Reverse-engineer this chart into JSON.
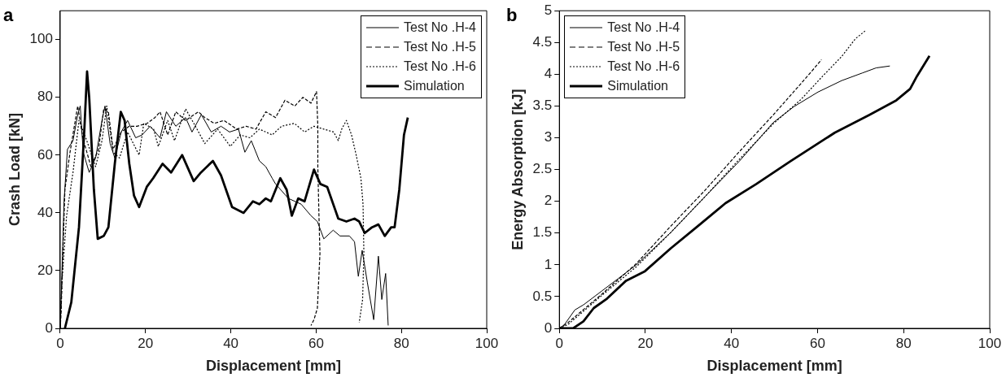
{
  "chart_data": [
    {
      "type": "line",
      "title": "a",
      "xlabel": "Displacement [mm]",
      "ylabel": "Crash Load [kN]",
      "xlim": [
        0,
        100
      ],
      "xticks": [
        0,
        20,
        40,
        60,
        80,
        100
      ],
      "ylim": [
        0,
        110
      ],
      "yticks": [
        0,
        20,
        40,
        60,
        80,
        100
      ],
      "legend": "top right",
      "grid": false,
      "marker": "none",
      "series": [
        {
          "name": "Test No .H-4",
          "color": "#000000",
          "line_style": "solid",
          "x": [
            0,
            0.2,
            0.9,
            1.7,
            3,
            4.1,
            4.7,
            5.4,
            6.8,
            8.3,
            9.8,
            10.5,
            11.7,
            12.8,
            14.3,
            15.8,
            17.7,
            19.2,
            21.1,
            23.4,
            24.9,
            27.1,
            29.4,
            30.9,
            33.1,
            35.4,
            37.7,
            39.7,
            41.8,
            43.3,
            44.8,
            46.7,
            48.2,
            49.7,
            50.5,
            53.5,
            56.5,
            58.8,
            60.3,
            61.8,
            64,
            65.6,
            67.8,
            69,
            69.9,
            70.8,
            72,
            73.5,
            74.6,
            75.4,
            76.3,
            76.9
          ],
          "values": [
            0,
            9,
            44,
            62,
            65,
            74,
            77,
            61,
            54,
            59,
            72,
            77,
            64,
            59,
            68,
            72,
            66,
            67,
            70,
            66,
            75,
            70,
            73,
            68,
            74,
            68,
            70,
            68,
            69,
            61,
            65,
            58,
            56,
            52,
            50,
            45,
            43,
            39,
            37,
            31,
            34,
            32,
            32,
            30,
            18,
            27,
            16,
            3,
            25,
            10,
            19,
            1
          ]
        },
        {
          "name": "Test No .H-5",
          "color": "#000000",
          "line_style": "dashed",
          "x": [
            0,
            0.2,
            1.1,
            2.3,
            4.1,
            5.3,
            7.2,
            9,
            10.2,
            11.3,
            12.4,
            14.3,
            16.2,
            18,
            20.4,
            22.2,
            23.4,
            25.2,
            27.1,
            29.4,
            32.4,
            33.9,
            36.1,
            38.4,
            41.4,
            43.6,
            45.9,
            48.2,
            50.5,
            52.7,
            55,
            56.9,
            58.8,
            60.1,
            60.4,
            60.4,
            60.7,
            60.9,
            60.3,
            59.5,
            58.8
          ],
          "values": [
            0,
            5,
            48,
            61,
            77,
            66,
            56,
            62,
            76,
            75,
            62,
            68,
            70,
            70,
            71,
            73,
            75,
            67,
            75,
            72,
            75,
            73,
            71,
            72,
            69,
            70,
            69,
            75,
            73,
            79,
            77,
            80,
            78,
            82,
            70,
            56,
            37,
            26,
            7,
            3,
            1
          ]
        },
        {
          "name": "Test No .H-6",
          "color": "#000000",
          "line_style": "dotted",
          "x": [
            0,
            0.4,
            1.5,
            3,
            4.4,
            6,
            8.3,
            9.8,
            10.9,
            12.4,
            13.9,
            15.8,
            18.5,
            19.6,
            21.9,
            23,
            25.2,
            26.8,
            29.4,
            31.7,
            33.9,
            36.9,
            39.9,
            42.2,
            44.5,
            46.7,
            49.7,
            51.9,
            54.9,
            57.3,
            59.5,
            61.8,
            64.1,
            65.2,
            66,
            67.1,
            68.3,
            69.4,
            70.5,
            71,
            71.2,
            70.9,
            70.1
          ],
          "values": [
            0,
            16,
            39,
            54,
            72,
            66,
            56,
            65,
            77,
            61,
            59,
            68,
            60,
            71,
            69,
            63,
            72,
            65,
            76,
            70,
            64,
            69,
            63,
            67,
            66,
            69,
            67,
            70,
            71,
            68,
            70,
            69,
            68,
            65,
            69,
            72,
            67,
            60,
            52,
            43,
            26,
            10,
            2
          ]
        },
        {
          "name": "Simulation",
          "color": "#000000",
          "line_style": "solid",
          "x": [
            1.1,
            2.6,
            4.4,
            5.7,
            6.3,
            6.8,
            7.9,
            8.8,
            10.2,
            11.3,
            12.8,
            14.2,
            15.1,
            16.2,
            17.3,
            18.5,
            20.3,
            21.8,
            24,
            26,
            28.6,
            31.3,
            33,
            35.8,
            37.7,
            40.3,
            43,
            45.2,
            46.7,
            48.2,
            49.4,
            51.6,
            53.1,
            54.3,
            55.8,
            57.3,
            59.5,
            61,
            62.6,
            65.2,
            67.1,
            69,
            70.1,
            71.4,
            73.1,
            74.6,
            76.1,
            77.6,
            78.4,
            79.5,
            80.6,
            81.5
          ],
          "values": [
            0,
            9,
            35,
            70,
            89,
            80,
            48,
            31,
            32,
            35,
            57,
            75,
            72,
            57,
            46,
            42,
            49,
            52,
            57,
            54,
            60,
            51,
            54,
            58,
            53,
            42,
            40,
            44,
            43,
            45,
            44,
            52,
            48,
            39,
            45,
            44,
            55,
            50,
            49,
            38,
            37,
            38,
            37,
            33,
            35,
            36,
            32,
            35,
            35,
            48,
            67,
            73
          ]
        }
      ]
    },
    {
      "type": "line",
      "title": "b",
      "xlabel": "Displacement [mm]",
      "ylabel": "Energy Absorption [kJ]",
      "xlim": [
        0,
        100
      ],
      "xticks": [
        0,
        20,
        40,
        60,
        80,
        100
      ],
      "ylim": [
        0,
        5
      ],
      "yticks": [
        0,
        0.5,
        1,
        1.5,
        2,
        2.5,
        3,
        3.5,
        4,
        4.5,
        5
      ],
      "legend": "top left",
      "grid": false,
      "marker": "none",
      "series": [
        {
          "name": "Test No .H-4",
          "color": "#000000",
          "line_style": "solid",
          "x": [
            0,
            1.2,
            3.6,
            5.6,
            9.9,
            17.9,
            25.9,
            33.8,
            41.8,
            49.7,
            54.5,
            60.1,
            65.6,
            70.4,
            73.6,
            76.8
          ],
          "values": [
            0,
            0.06,
            0.29,
            0.37,
            0.59,
            1.0,
            1.51,
            2.07,
            2.63,
            3.24,
            3.49,
            3.72,
            3.9,
            4.02,
            4.1,
            4.13
          ]
        },
        {
          "name": "Test No .H-5",
          "color": "#000000",
          "line_style": "dashed",
          "x": [
            0,
            2,
            9.9,
            17.9,
            25.9,
            33.8,
            41.8,
            49.7,
            56.1,
            59.3,
            60.9
          ],
          "values": [
            0,
            0.09,
            0.54,
            1.02,
            1.61,
            2.17,
            2.78,
            3.36,
            3.85,
            4.1,
            4.23
          ]
        },
        {
          "name": "Test No .H-6",
          "color": "#000000",
          "line_style": "dotted",
          "x": [
            0,
            2,
            9.9,
            17.9,
            25.9,
            33.8,
            41.8,
            49.7,
            56.1,
            60.9,
            65.6,
            68.8,
            71.2
          ],
          "values": [
            0,
            0.06,
            0.52,
            0.97,
            1.51,
            2.07,
            2.66,
            3.22,
            3.6,
            3.95,
            4.28,
            4.56,
            4.69
          ]
        },
        {
          "name": "Simulation",
          "color": "#000000",
          "line_style": "solid",
          "x": [
            0,
            3.2,
            5.6,
            8,
            11.1,
            15.5,
            19.9,
            25.9,
            32.2,
            38.6,
            45.7,
            53.7,
            64,
            72,
            78.3,
            81.5,
            83.1,
            86
          ],
          "values": [
            0,
            0,
            0.11,
            0.32,
            0.47,
            0.75,
            0.9,
            1.26,
            1.61,
            1.97,
            2.27,
            2.63,
            3.08,
            3.36,
            3.59,
            3.77,
            3.97,
            4.29
          ]
        }
      ]
    }
  ]
}
